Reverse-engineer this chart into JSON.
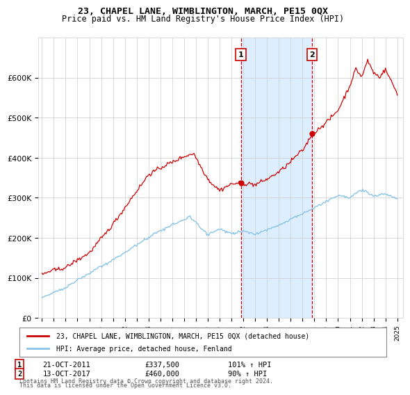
{
  "title": "23, CHAPEL LANE, WIMBLINGTON, MARCH, PE15 0QX",
  "subtitle": "Price paid vs. HM Land Registry's House Price Index (HPI)",
  "legend_line1": "23, CHAPEL LANE, WIMBLINGTON, MARCH, PE15 0QX (detached house)",
  "legend_line2": "HPI: Average price, detached house, Fenland",
  "footnote1": "Contains HM Land Registry data © Crown copyright and database right 2024.",
  "footnote2": "This data is licensed under the Open Government Licence v3.0.",
  "sale1_label": "1",
  "sale1_date": "21-OCT-2011",
  "sale1_price": 337500,
  "sale1_price_str": "£337,500",
  "sale1_hpi": "101% ↑ HPI",
  "sale2_label": "2",
  "sale2_date": "13-OCT-2017",
  "sale2_price": 460000,
  "sale2_price_str": "£460,000",
  "sale2_hpi": "90% ↑ HPI",
  "sale1_year": 2011.8,
  "sale2_year": 2017.8,
  "hpi_color": "#89c4e8",
  "price_color": "#cc0000",
  "shade_color": "#ddeeff",
  "grid_color": "#cccccc",
  "bg_color": "#ffffff",
  "ylim": [
    0,
    700000
  ],
  "xlim_start": 1994.7,
  "xlim_end": 2025.5,
  "yticks": [
    0,
    100000,
    200000,
    300000,
    400000,
    500000,
    600000
  ],
  "ylabels": [
    "£0",
    "£100K",
    "£200K",
    "£300K",
    "£400K",
    "£500K",
    "£600K"
  ]
}
